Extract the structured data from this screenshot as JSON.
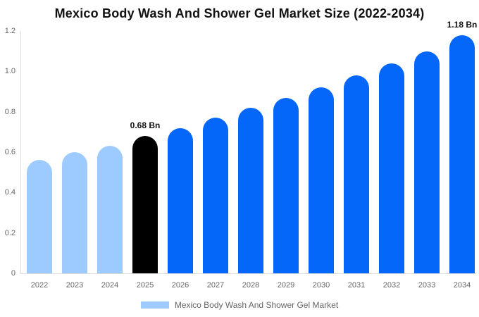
{
  "title": "Mexico Body Wash And Shower Gel Market Size (2022-2034)",
  "colors": {
    "historical_bar": "#9ECBFF",
    "highlight_bar": "#000000",
    "forecast_bar": "#0566FA",
    "axis_line": "#DDDDDD",
    "tick_text": "#666666",
    "annotation_text": "#111111",
    "legend_text": "#666666"
  },
  "chart_data": {
    "type": "bar",
    "title": "Mexico Body Wash And Shower Gel Market Size (2022-2034)",
    "categories": [
      "2022",
      "2023",
      "2024",
      "2025",
      "2026",
      "2027",
      "2028",
      "2029",
      "2030",
      "2031",
      "2032",
      "2033",
      "2034"
    ],
    "values": [
      0.56,
      0.6,
      0.63,
      0.68,
      0.72,
      0.77,
      0.82,
      0.87,
      0.92,
      0.98,
      1.04,
      1.1,
      1.18
    ],
    "bar_styles": [
      "historical",
      "historical",
      "historical",
      "highlight",
      "forecast",
      "forecast",
      "forecast",
      "forecast",
      "forecast",
      "forecast",
      "forecast",
      "forecast",
      "forecast"
    ],
    "unit": "Bn",
    "xlabel": "",
    "ylabel": "",
    "ylim": [
      0,
      1.2
    ],
    "yticks": [
      0,
      0.2,
      0.4,
      0.6,
      0.8,
      1.0,
      1.2
    ],
    "ytick_labels": [
      "0",
      "0.2",
      "0.4",
      "0.6",
      "0.8",
      "1.0",
      "1.2"
    ],
    "grid": false,
    "legend_position": "bottom",
    "annotations": [
      {
        "category": "2025",
        "text": "0.68 Bn"
      },
      {
        "category": "2034",
        "text": "1.18 Bn"
      }
    ],
    "legend": [
      {
        "label": "Mexico Body Wash And Shower Gel Market",
        "swatch_style": "historical"
      }
    ]
  }
}
